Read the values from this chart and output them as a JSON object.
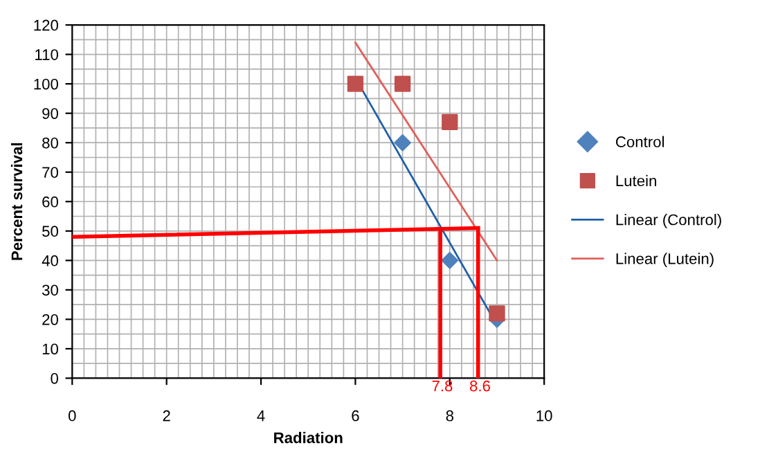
{
  "chart_data": {
    "type": "scatter",
    "xlabel": "Radiation",
    "ylabel": "Percent survival",
    "xlim": [
      0,
      10
    ],
    "ylim": [
      0,
      120
    ],
    "xticks": [
      0,
      2,
      4,
      6,
      8,
      10
    ],
    "yticks": [
      0,
      10,
      20,
      30,
      40,
      50,
      60,
      70,
      80,
      90,
      100,
      110,
      120
    ],
    "grid": true,
    "legend": "right",
    "series": [
      {
        "name": "Control",
        "marker": "diamond",
        "color": "#4f81bd",
        "x": [
          7,
          8,
          9
        ],
        "values": [
          80,
          40,
          20
        ]
      },
      {
        "name": "Lutein",
        "marker": "square",
        "color": "#c0504d",
        "x": [
          6,
          7,
          8,
          9
        ],
        "values": [
          100,
          100,
          87,
          22
        ]
      },
      {
        "name": "Linear (Control)",
        "type": "line",
        "color": "#1f5fa8",
        "x": [
          6,
          9
        ],
        "values": [
          102,
          18
        ]
      },
      {
        "name": "Linear (Lutein)",
        "type": "line",
        "color": "#e0605a",
        "x": [
          6,
          9
        ],
        "values": [
          114,
          40
        ]
      },
      {
        "type": "line",
        "color": "#ff0000",
        "x": [
          0,
          8.6
        ],
        "values": [
          48,
          51
        ]
      },
      {
        "type": "line",
        "color": "#ff0000",
        "x": [
          7.8,
          7.8
        ],
        "values": [
          0,
          50
        ]
      },
      {
        "type": "line",
        "color": "#ff0000",
        "x": [
          8.6,
          8.6
        ],
        "values": [
          0,
          51
        ]
      }
    ],
    "annotations": [
      {
        "text": "7.8",
        "x": 7.8,
        "y": 0
      },
      {
        "text": "8.6",
        "x": 8.6,
        "y": 0
      }
    ]
  }
}
